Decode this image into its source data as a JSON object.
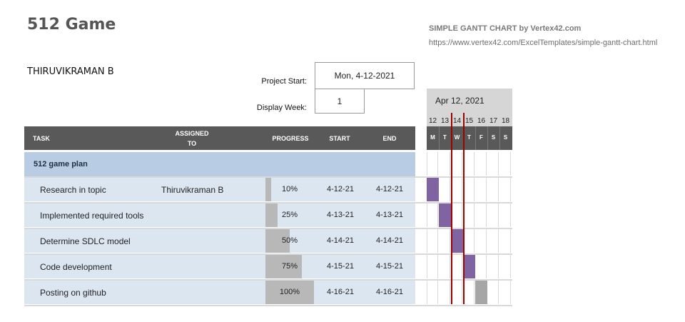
{
  "header": {
    "title": "512 Game",
    "brand": "SIMPLE GANTT CHART by Vertex42.com",
    "url": "https://www.vertex42.com/ExcelTemplates/simple-gantt-chart.html",
    "owner": "THIRUVIKRAMAN B"
  },
  "settings": {
    "project_start_label": "Project Start:",
    "project_start_value": "Mon, 4-12-2021",
    "display_week_label": "Display Week:",
    "display_week_value": "1"
  },
  "calendar": {
    "week_label": "Apr 12, 2021",
    "day_numbers": [
      "12",
      "13",
      "14",
      "15",
      "16",
      "17",
      "18"
    ],
    "day_letters": [
      "M",
      "T",
      "W",
      "T",
      "F",
      "S",
      "S"
    ]
  },
  "columns": {
    "task": "TASK",
    "assigned": "ASSIGNED",
    "assigned2": "TO",
    "progress": "PROGRESS",
    "start": "START",
    "end": "END"
  },
  "phase": {
    "name": "512 game plan"
  },
  "tasks": [
    {
      "name": "Research in topic",
      "assigned": "Thiruvikraman B",
      "progress": "10%",
      "progress_value": 0.1,
      "start": "4-12-21",
      "end": "4-12-21",
      "bar_color": "#8064a2"
    },
    {
      "name": "Implemented required tools",
      "assigned": "",
      "progress": "25%",
      "progress_value": 0.25,
      "start": "4-13-21",
      "end": "4-13-21",
      "bar_color": "#8064a2"
    },
    {
      "name": "Determine SDLC model",
      "assigned": "",
      "progress": "50%",
      "progress_value": 0.5,
      "start": "4-14-21",
      "end": "4-14-21",
      "bar_color": "#8064a2"
    },
    {
      "name": "Code development",
      "assigned": "",
      "progress": "75%",
      "progress_value": 0.75,
      "start": "4-15-21",
      "end": "4-15-21",
      "bar_color": "#8064a2"
    },
    {
      "name": "Posting on github",
      "assigned": "",
      "progress": "100%",
      "progress_value": 1.0,
      "start": "4-16-21",
      "end": "4-16-21",
      "bar_color": "#a6a6a6"
    }
  ],
  "colors": {
    "header": "#595959",
    "phase": "#b8cce4",
    "row": "#dce6f1",
    "today_line": "#a00000"
  }
}
